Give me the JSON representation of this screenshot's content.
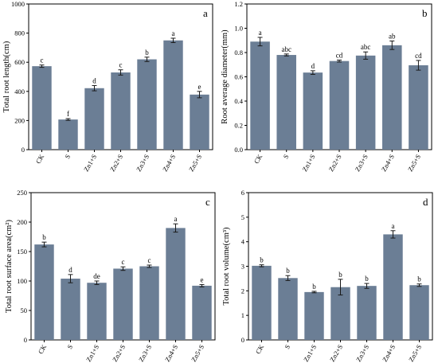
{
  "figure": {
    "bar_color": "#6b7e95",
    "error_color": "#1a1a1a",
    "axis_color": "#000000"
  },
  "chart_data": [
    {
      "id": "a",
      "type": "bar",
      "panel_label": "a",
      "ylabel": "Total root length(cm)",
      "ylim": [
        0,
        1000
      ],
      "yticks": [
        "0",
        "200",
        "400",
        "600",
        "800",
        "1000"
      ],
      "categories": [
        "CK",
        "S",
        "Zn1+S",
        "Zn2+S",
        "Zn3+S",
        "Zn4+S",
        "Zn5+S"
      ],
      "values": [
        573,
        207,
        422,
        530,
        620,
        750,
        378
      ],
      "errors": [
        8,
        6,
        18,
        18,
        15,
        15,
        22
      ],
      "labels": [
        "c",
        "f",
        "d",
        "c",
        "b",
        "a",
        "e"
      ]
    },
    {
      "id": "b",
      "type": "bar",
      "panel_label": "b",
      "ylabel": "Root average diameter(mm)",
      "ylim": [
        0,
        1.2
      ],
      "yticks": [
        "0.0",
        "0.2",
        "0.4",
        "0.6",
        "0.8",
        "1.0",
        "1.2"
      ],
      "categories": [
        "CK",
        "S",
        "Zn1+S",
        "Zn2+S",
        "Zn3+S",
        "Zn4+S",
        "Zn5+S"
      ],
      "values": [
        0.89,
        0.78,
        0.635,
        0.73,
        0.775,
        0.86,
        0.695
      ],
      "errors": [
        0.035,
        0.008,
        0.015,
        0.008,
        0.03,
        0.035,
        0.04
      ],
      "labels": [
        "a",
        "abc",
        "d",
        "cd",
        "abc",
        "ab",
        "cd"
      ]
    },
    {
      "id": "c",
      "type": "bar",
      "panel_label": "c",
      "ylabel": "Total root surface area(cm²)",
      "ylim": [
        0,
        250
      ],
      "yticks": [
        "0",
        "50",
        "100",
        "150",
        "200",
        "250"
      ],
      "categories": [
        "CK",
        "S",
        "Zn1+S",
        "Zn2+S",
        "Zn3+S",
        "Zn4+S",
        "Zn5+S"
      ],
      "values": [
        162,
        104,
        97,
        121,
        125,
        190,
        92
      ],
      "errors": [
        4,
        7,
        3,
        3,
        2,
        7,
        2
      ],
      "labels": [
        "b",
        "d",
        "de",
        "c",
        "c",
        "a",
        "e"
      ]
    },
    {
      "id": "d",
      "type": "bar",
      "panel_label": "d",
      "ylabel": "Total root volume(cm³)",
      "ylim": [
        0,
        6
      ],
      "yticks": [
        "0",
        "1",
        "2",
        "3",
        "4",
        "5",
        "6"
      ],
      "categories": [
        "CK",
        "S",
        "Zn1+S",
        "Zn2+S",
        "Zn3+S",
        "Zn4+S",
        "Zn5+S"
      ],
      "values": [
        3.02,
        2.52,
        1.95,
        2.15,
        2.2,
        4.3,
        2.23
      ],
      "errors": [
        0.04,
        0.1,
        0.03,
        0.32,
        0.1,
        0.15,
        0.05
      ],
      "labels": [
        "b",
        "b",
        "b",
        "b",
        "b",
        "a",
        "b"
      ]
    }
  ]
}
